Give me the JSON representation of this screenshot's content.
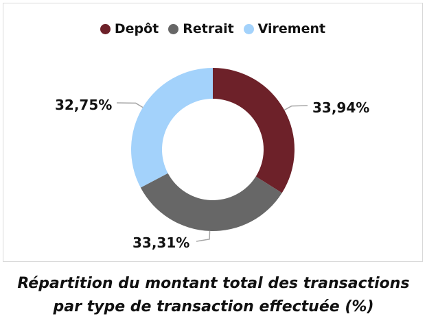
{
  "chart_data": {
    "type": "pie",
    "donut": true,
    "categories": [
      "Depôt",
      "Retrait",
      "Virement"
    ],
    "values": [
      33.94,
      33.31,
      32.75
    ],
    "labels": [
      "33,94%",
      "33,31%",
      "32,75%"
    ],
    "colors": [
      "#6d2129",
      "#676767",
      "#a3d2fb"
    ],
    "legend_position": "top",
    "title_line1": "Répartition du montant total des transactions",
    "title_line2": "par type de transaction effectuée (%)"
  }
}
